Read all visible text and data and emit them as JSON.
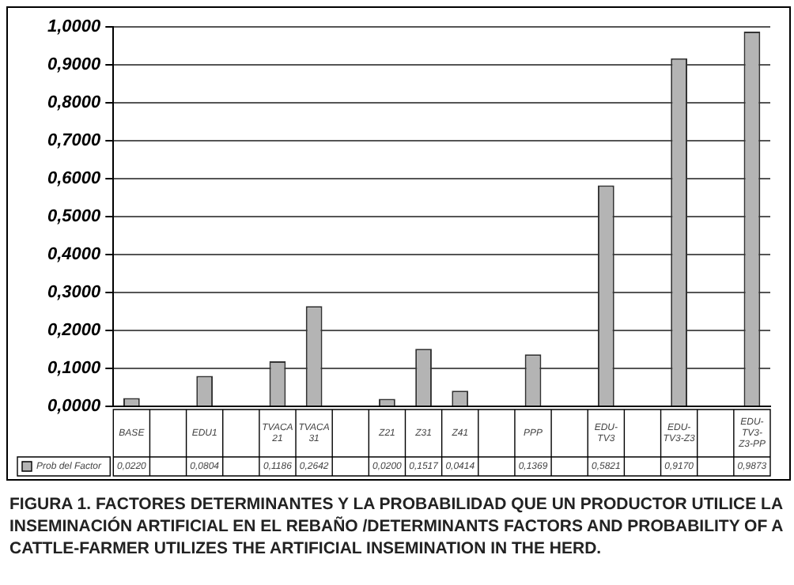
{
  "chart_data": {
    "type": "bar",
    "title": "FIGURA 1. FACTORES DETERMINANTES Y LA PROBABILIDAD QUE UN PRODUCTOR UTILICE LA INSEMINACIÓN ARTIFICIAL EN EL REBAÑO /DETERMINANTS FACTORS AND PROBABILITY OF A CATTLE-FARMER UTILIZES THE ARTIFICIAL INSEMINATION IN THE HERD.",
    "categories": [
      "BASE",
      null,
      "EDU1",
      null,
      "TVACA 21",
      "TVACA 31",
      null,
      "Z21",
      "Z31",
      "Z41",
      null,
      "PPP",
      null,
      "EDU-TV3",
      null,
      "EDU-TV3-Z3",
      null,
      "EDU-TV3-Z3-PP"
    ],
    "series": [
      {
        "name": "Prob del Factor",
        "color": "#b4b4b4",
        "values": [
          0.022,
          null,
          0.0804,
          null,
          0.1186,
          0.2642,
          null,
          0.02,
          0.1517,
          0.0414,
          null,
          0.1369,
          null,
          0.5821,
          null,
          0.917,
          null,
          0.9873
        ],
        "value_labels": [
          "0,0220",
          null,
          "0,0804",
          null,
          "0,1186",
          "0,2642",
          null,
          "0,0200",
          "0,1517",
          "0,0414",
          null,
          "0,1369",
          null,
          "0,5821",
          null,
          "0,9170",
          null,
          "0,9873"
        ]
      }
    ],
    "ylim": [
      0,
      1
    ],
    "yticks": [
      {
        "value": 0,
        "label": "0,0000"
      },
      {
        "value": 0.1,
        "label": "0,1000"
      },
      {
        "value": 0.2,
        "label": "0,2000"
      },
      {
        "value": 0.3,
        "label": "0,3000"
      },
      {
        "value": 0.4,
        "label": "0,4000"
      },
      {
        "value": 0.5,
        "label": "0,5000"
      },
      {
        "value": 0.6,
        "label": "0,6000"
      },
      {
        "value": 0.7,
        "label": "0,7000"
      },
      {
        "value": 0.8,
        "label": "0,8000"
      },
      {
        "value": 0.9,
        "label": "0,9000"
      },
      {
        "value": 1,
        "label": "1,0000"
      }
    ],
    "grid": "y",
    "legend": "bottom"
  }
}
